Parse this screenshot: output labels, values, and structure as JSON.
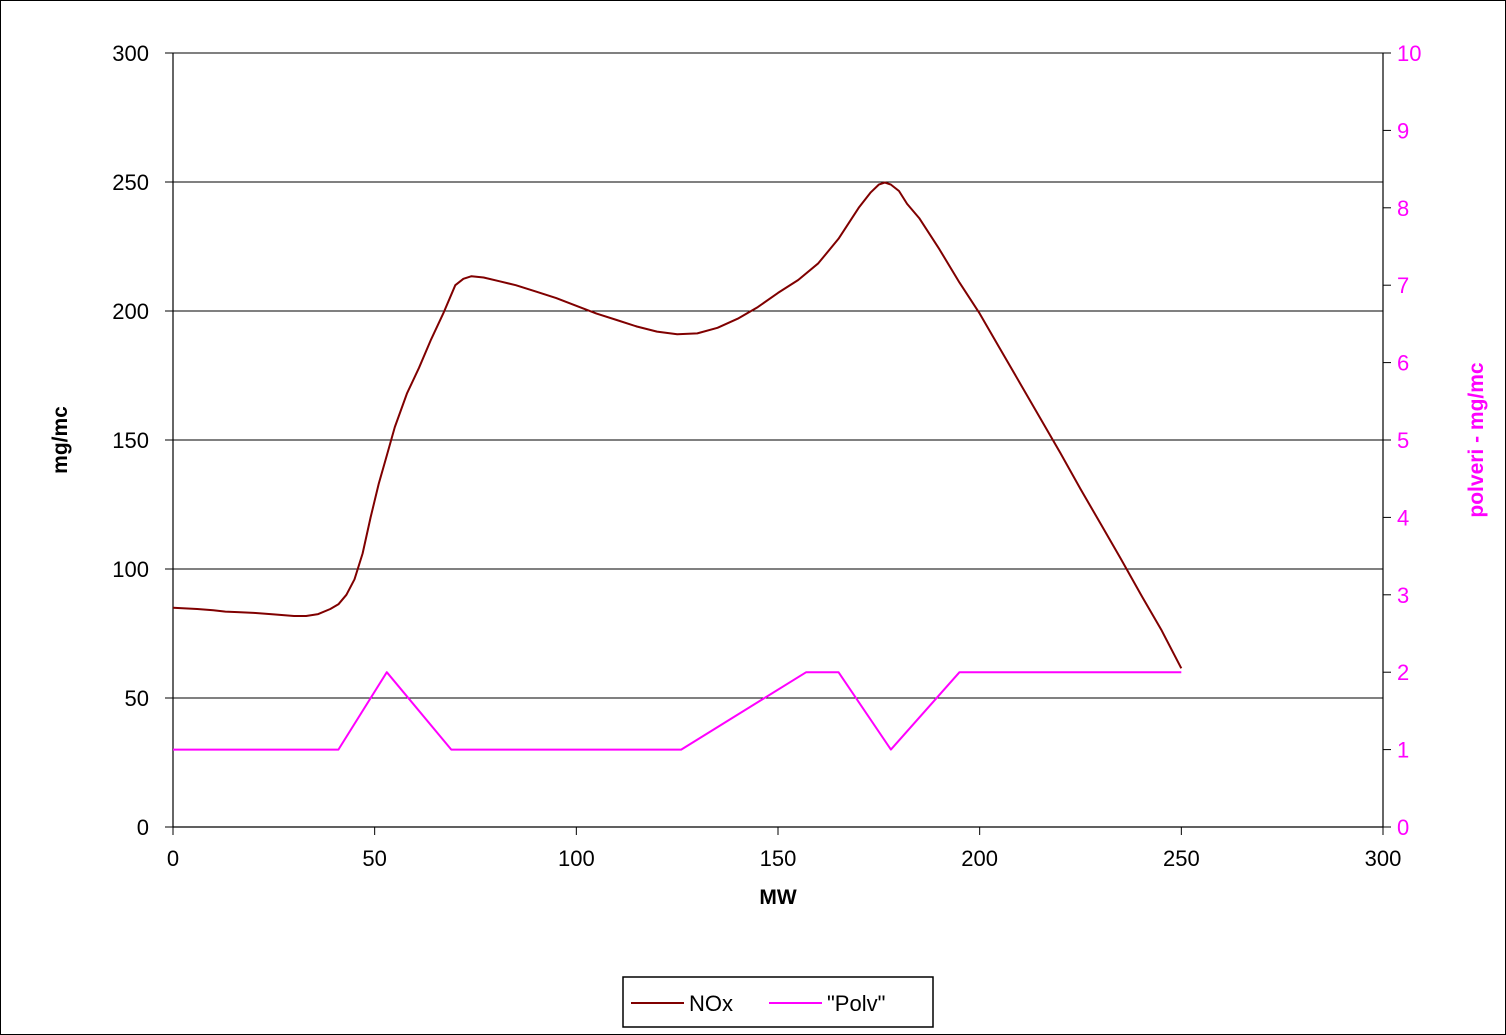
{
  "chart_data": {
    "type": "line",
    "xlabel": "MW",
    "ylabel": "mg/mc",
    "y2label": "polveri - mg/mc",
    "xlim": [
      0,
      300
    ],
    "ylim": [
      0,
      300
    ],
    "y2lim": [
      0,
      10
    ],
    "x_ticks": [
      "0",
      "50",
      "100",
      "150",
      "200",
      "250",
      "300"
    ],
    "y_ticks": [
      "0",
      "50",
      "100",
      "150",
      "200",
      "250",
      "300"
    ],
    "y2_ticks": [
      "0",
      "1",
      "2",
      "3",
      "4",
      "5",
      "6",
      "7",
      "8",
      "9",
      "10"
    ],
    "grid": "horizontal major gridlines",
    "legend_position": "bottom",
    "series": [
      {
        "name": "NOx",
        "axis": "left",
        "color": "#800000",
        "points": [
          [
            0,
            85
          ],
          [
            6,
            84.5
          ],
          [
            10,
            84
          ],
          [
            13,
            83.5
          ],
          [
            16,
            83.3
          ],
          [
            20,
            83
          ],
          [
            25,
            82.4
          ],
          [
            30,
            81.8
          ],
          [
            33,
            81.8
          ],
          [
            36,
            82.5
          ],
          [
            39,
            84.5
          ],
          [
            41,
            86.3
          ],
          [
            43,
            90
          ],
          [
            45,
            96
          ],
          [
            47,
            106
          ],
          [
            49,
            120
          ],
          [
            51,
            133
          ],
          [
            53,
            144
          ],
          [
            55,
            155
          ],
          [
            58,
            168
          ],
          [
            61,
            178
          ],
          [
            64,
            189
          ],
          [
            67,
            199
          ],
          [
            70,
            210
          ],
          [
            72,
            212.5
          ],
          [
            74,
            213.5
          ],
          [
            77,
            213
          ],
          [
            81,
            211.5
          ],
          [
            85,
            210
          ],
          [
            90,
            207.5
          ],
          [
            95,
            205
          ],
          [
            100,
            202
          ],
          [
            105,
            199
          ],
          [
            110,
            196.5
          ],
          [
            115,
            194
          ],
          [
            120,
            192
          ],
          [
            125,
            191
          ],
          [
            130,
            191.3
          ],
          [
            135,
            193.5
          ],
          [
            140,
            197
          ],
          [
            145,
            201.5
          ],
          [
            150,
            207
          ],
          [
            155,
            212
          ],
          [
            160,
            218.5
          ],
          [
            165,
            228
          ],
          [
            170,
            240
          ],
          [
            173,
            246
          ],
          [
            175,
            249
          ],
          [
            176.5,
            249.8
          ],
          [
            178,
            249
          ],
          [
            180,
            246.5
          ],
          [
            182,
            241.5
          ],
          [
            185,
            236
          ],
          [
            190,
            224
          ],
          [
            195,
            211
          ],
          [
            200,
            199
          ],
          [
            205,
            185.5
          ],
          [
            210,
            172
          ],
          [
            215,
            158.5
          ],
          [
            220,
            145
          ],
          [
            225,
            131
          ],
          [
            230,
            117.5
          ],
          [
            235,
            104
          ],
          [
            240,
            90
          ],
          [
            245,
            76.5
          ],
          [
            250,
            61.5
          ]
        ]
      },
      {
        "name": "\"Polv\"",
        "axis": "right",
        "color": "#FF00FF",
        "points": [
          [
            0,
            1
          ],
          [
            41,
            1
          ],
          [
            53,
            2
          ],
          [
            69,
            1
          ],
          [
            126,
            1
          ],
          [
            157,
            2
          ],
          [
            165,
            2
          ],
          [
            178,
            1
          ],
          [
            195,
            2
          ],
          [
            250,
            2
          ]
        ]
      }
    ]
  },
  "colors": {
    "nox_line": "#800000",
    "polv_line": "#FF00FF",
    "right_axis_text": "#FF00FF",
    "gridline": "#000000"
  }
}
